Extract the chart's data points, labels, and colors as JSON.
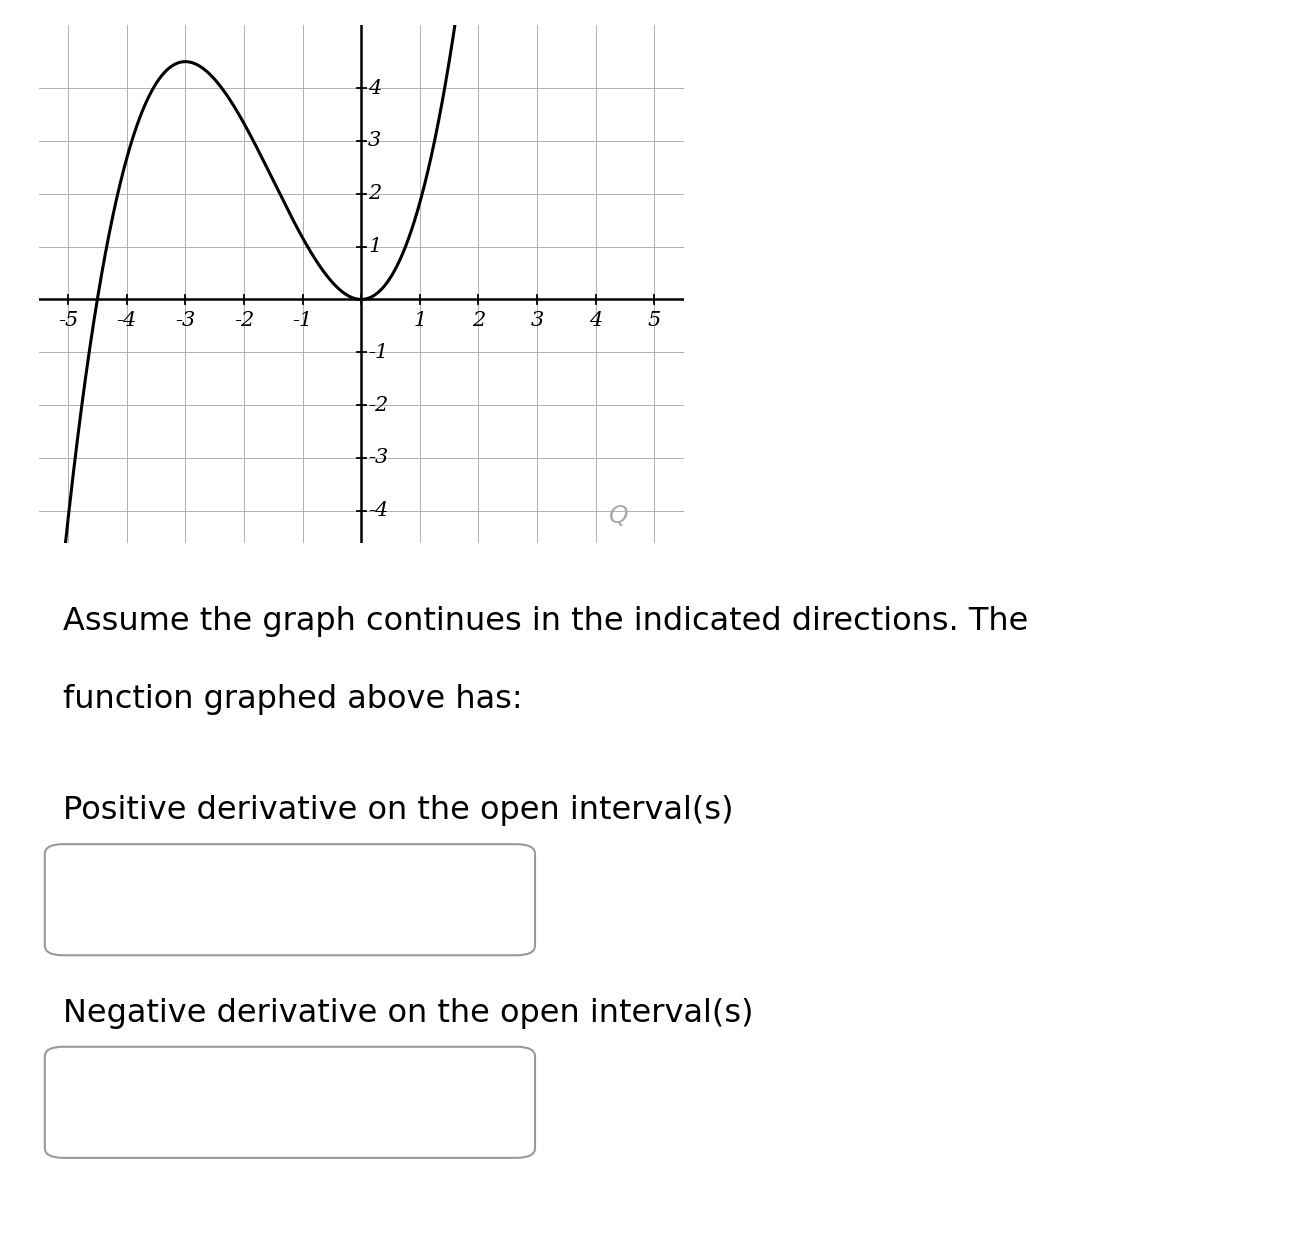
{
  "xlim": [
    -5.5,
    5.5
  ],
  "ylim": [
    -4.6,
    5.2
  ],
  "xticks": [
    -5,
    -4,
    -3,
    -2,
    -1,
    1,
    2,
    3,
    4,
    5
  ],
  "yticks": [
    -4,
    -3,
    -2,
    -1,
    1,
    2,
    3,
    4
  ],
  "curve_color": "#000000",
  "curve_linewidth": 2.2,
  "grid_color": "#b0b0b0",
  "grid_linewidth": 0.7,
  "axis_color": "#000000",
  "axis_linewidth": 1.8,
  "tick_font_size": 15,
  "background_color": "#ffffff",
  "text_line1": "Assume the graph continues in the indicated directions. The",
  "text_line2": "function graphed above has:",
  "text_positive": "Positive derivative on the open interval(s)",
  "text_negative": "Negative derivative on the open interval(s)",
  "text_font_size": 23,
  "magnifier_color": "#aaaaaa"
}
